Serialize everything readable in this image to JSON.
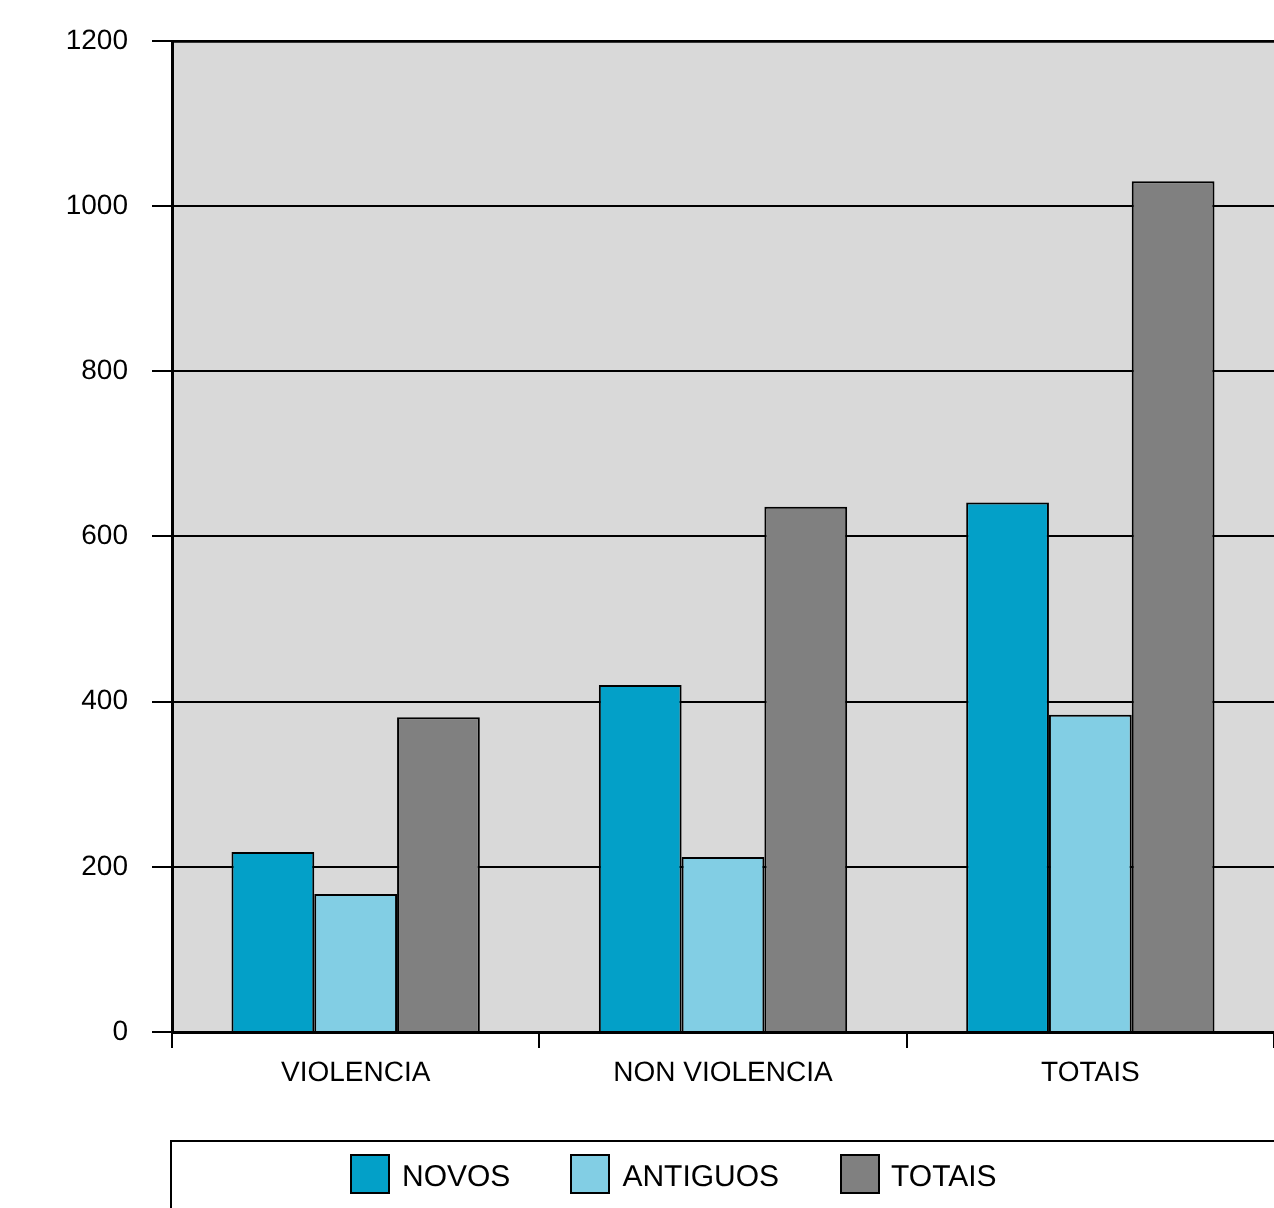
{
  "chart_data": {
    "type": "bar",
    "categories": [
      "VIOLENCIA",
      "NON VIOLENCIA",
      "TOTAIS"
    ],
    "series": [
      {
        "name": "NOVOS",
        "color": "#03a0c8",
        "values": [
          218,
          420,
          641
        ]
      },
      {
        "name": "ANTIGUOS",
        "color": "#82cee4",
        "values": [
          167,
          212,
          384
        ]
      },
      {
        "name": "TOTAIS",
        "color": "#808080",
        "values": [
          381,
          636,
          1030
        ]
      }
    ],
    "ylim": [
      0,
      1200
    ],
    "yticks": [
      0,
      200,
      400,
      600,
      800,
      1000,
      1200
    ],
    "grid": "y",
    "legend": "bottom"
  }
}
